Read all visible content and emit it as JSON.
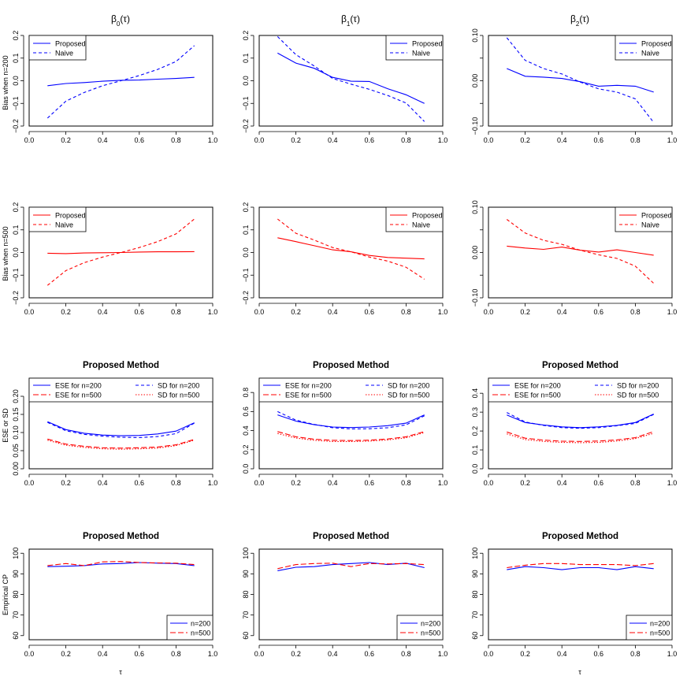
{
  "column_titles": [
    "β0(τ)",
    "β1(τ)",
    "β2(τ)"
  ],
  "row_ylabels": [
    "Bias when n=200",
    "Bias when n=500",
    "ESE or SD",
    "Empirical CP"
  ],
  "xlabel": "τ",
  "colors": {
    "blue": "#0000ff",
    "red": "#ff0000",
    "axis": "#000000"
  },
  "chart_data": [
    {
      "type": "line",
      "row": 0,
      "col": 0,
      "title": "",
      "xlabel": "",
      "ylabel": "Bias when n=200",
      "xlim": [
        0,
        1
      ],
      "ylim": [
        -0.2,
        0.2
      ],
      "xticks": [
        0,
        0.2,
        0.4,
        0.6,
        0.8,
        1
      ],
      "xtick_labels": [
        "0.0",
        "0.2",
        "0.4",
        "0.6",
        "0.8",
        "1.0"
      ],
      "yticks": [
        -0.2,
        -0.1,
        0,
        0.1,
        0.2
      ],
      "ytick_labels": [
        "−0.2",
        "−0.1",
        "0.0",
        "0.1",
        "0.2"
      ],
      "legend": "top-left",
      "x": [
        0.1,
        0.2,
        0.3,
        0.4,
        0.5,
        0.6,
        0.7,
        0.8,
        0.9
      ],
      "series": [
        {
          "name": "Proposed",
          "color": "#0000ff",
          "dash": false,
          "values": [
            -0.022,
            -0.012,
            -0.008,
            -0.002,
            0.002,
            0.003,
            0.007,
            0.01,
            0.015
          ]
        },
        {
          "name": "Naive",
          "color": "#0000ff",
          "dash": true,
          "values": [
            -0.165,
            -0.09,
            -0.052,
            -0.022,
            0.0,
            0.023,
            0.05,
            0.085,
            0.155
          ]
        }
      ]
    },
    {
      "type": "line",
      "row": 0,
      "col": 1,
      "title": "",
      "xlabel": "",
      "ylabel": "",
      "xlim": [
        0,
        1
      ],
      "ylim": [
        -0.2,
        0.2
      ],
      "xticks": [
        0,
        0.2,
        0.4,
        0.6,
        0.8,
        1
      ],
      "xtick_labels": [
        "0.0",
        "0.2",
        "0.4",
        "0.6",
        "0.8",
        "1.0"
      ],
      "yticks": [
        -0.2,
        -0.1,
        0,
        0.1,
        0.2
      ],
      "ytick_labels": [
        "−0.2",
        "−0.1",
        "0.0",
        "0.1",
        "0.2"
      ],
      "legend": "top-right",
      "x": [
        0.1,
        0.2,
        0.3,
        0.4,
        0.5,
        0.6,
        0.7,
        0.8,
        0.9
      ],
      "series": [
        {
          "name": "Proposed",
          "color": "#0000ff",
          "dash": false,
          "values": [
            0.122,
            0.078,
            0.055,
            0.015,
            -0.002,
            -0.003,
            -0.035,
            -0.062,
            -0.1
          ]
        },
        {
          "name": "Naive",
          "color": "#0000ff",
          "dash": true,
          "values": [
            0.195,
            0.115,
            0.065,
            0.01,
            -0.015,
            -0.038,
            -0.065,
            -0.098,
            -0.18
          ]
        }
      ]
    },
    {
      "type": "line",
      "row": 0,
      "col": 2,
      "title": "",
      "xlabel": "",
      "ylabel": "",
      "xlim": [
        0,
        1
      ],
      "ylim": [
        -0.1,
        0.1
      ],
      "xticks": [
        0,
        0.2,
        0.4,
        0.6,
        0.8,
        1
      ],
      "xtick_labels": [
        "0.0",
        "0.2",
        "0.4",
        "0.6",
        "0.8",
        "1.0"
      ],
      "yticks": [
        -0.1,
        -0.05,
        0,
        0.05,
        0.1
      ],
      "ytick_labels": [
        "−0.10",
        "",
        "0.00",
        "",
        "0.10"
      ],
      "legend": "top-right",
      "x": [
        0.1,
        0.2,
        0.3,
        0.4,
        0.5,
        0.6,
        0.7,
        0.8,
        0.9
      ],
      "series": [
        {
          "name": "Proposed",
          "color": "#0000ff",
          "dash": false,
          "values": [
            0.027,
            0.01,
            0.008,
            0.005,
            -0.002,
            -0.012,
            -0.01,
            -0.012,
            -0.025
          ]
        },
        {
          "name": "Naive",
          "color": "#0000ff",
          "dash": true,
          "values": [
            0.095,
            0.045,
            0.027,
            0.015,
            -0.003,
            -0.018,
            -0.025,
            -0.04,
            -0.092
          ]
        }
      ]
    },
    {
      "type": "line",
      "row": 1,
      "col": 0,
      "title": "",
      "xlabel": "",
      "ylabel": "Bias when n=500",
      "xlim": [
        0,
        1
      ],
      "ylim": [
        -0.2,
        0.2
      ],
      "xticks": [
        0,
        0.2,
        0.4,
        0.6,
        0.8,
        1
      ],
      "xtick_labels": [
        "0.0",
        "0.2",
        "0.4",
        "0.6",
        "0.8",
        "1.0"
      ],
      "yticks": [
        -0.2,
        -0.1,
        0,
        0.1,
        0.2
      ],
      "ytick_labels": [
        "−0.2",
        "−0.1",
        "0.0",
        "0.1",
        "0.2"
      ],
      "legend": "top-left",
      "x": [
        0.1,
        0.2,
        0.3,
        0.4,
        0.5,
        0.6,
        0.7,
        0.8,
        0.9
      ],
      "series": [
        {
          "name": "Proposed",
          "color": "#ff0000",
          "dash": false,
          "values": [
            -0.003,
            -0.005,
            -0.002,
            -0.001,
            0.0,
            0.002,
            0.003,
            0.003,
            0.004
          ]
        },
        {
          "name": "Naive",
          "color": "#ff0000",
          "dash": true,
          "values": [
            -0.145,
            -0.08,
            -0.045,
            -0.02,
            0.0,
            0.022,
            0.048,
            0.082,
            0.148
          ]
        }
      ]
    },
    {
      "type": "line",
      "row": 1,
      "col": 1,
      "title": "",
      "xlabel": "",
      "ylabel": "",
      "xlim": [
        0,
        1
      ],
      "ylim": [
        -0.2,
        0.2
      ],
      "xticks": [
        0,
        0.2,
        0.4,
        0.6,
        0.8,
        1
      ],
      "xtick_labels": [
        "0.0",
        "0.2",
        "0.4",
        "0.6",
        "0.8",
        "1.0"
      ],
      "yticks": [
        -0.2,
        -0.1,
        0,
        0.1,
        0.2
      ],
      "ytick_labels": [
        "−0.2",
        "−0.1",
        "0.0",
        "0.1",
        "0.2"
      ],
      "legend": "top-right",
      "x": [
        0.1,
        0.2,
        0.3,
        0.4,
        0.5,
        0.6,
        0.7,
        0.8,
        0.9
      ],
      "series": [
        {
          "name": "Proposed",
          "color": "#ff0000",
          "dash": false,
          "values": [
            0.065,
            0.048,
            0.03,
            0.012,
            0.003,
            -0.013,
            -0.022,
            -0.025,
            -0.028
          ]
        },
        {
          "name": "Naive",
          "color": "#ff0000",
          "dash": true,
          "values": [
            0.148,
            0.085,
            0.055,
            0.022,
            0.003,
            -0.02,
            -0.038,
            -0.065,
            -0.118
          ]
        }
      ]
    },
    {
      "type": "line",
      "row": 1,
      "col": 2,
      "title": "",
      "xlabel": "",
      "ylabel": "",
      "xlim": [
        0,
        1
      ],
      "ylim": [
        -0.1,
        0.1
      ],
      "xticks": [
        0,
        0.2,
        0.4,
        0.6,
        0.8,
        1
      ],
      "xtick_labels": [
        "0.0",
        "0.2",
        "0.4",
        "0.6",
        "0.8",
        "1.0"
      ],
      "yticks": [
        -0.1,
        -0.05,
        0,
        0.05,
        0.1
      ],
      "ytick_labels": [
        "−0.10",
        "",
        "0.00",
        "",
        "0.10"
      ],
      "legend": "top-right",
      "x": [
        0.1,
        0.2,
        0.3,
        0.4,
        0.5,
        0.6,
        0.7,
        0.8,
        0.9
      ],
      "series": [
        {
          "name": "Proposed",
          "color": "#ff0000",
          "dash": false,
          "values": [
            0.014,
            0.01,
            0.007,
            0.012,
            0.005,
            0.001,
            0.006,
            0.0,
            -0.006
          ]
        },
        {
          "name": "Naive",
          "color": "#ff0000",
          "dash": true,
          "values": [
            0.073,
            0.043,
            0.027,
            0.018,
            0.005,
            -0.005,
            -0.013,
            -0.03,
            -0.068
          ]
        }
      ]
    },
    {
      "type": "line",
      "row": 2,
      "col": 0,
      "title": "Proposed Method",
      "xlabel": "",
      "ylabel": "ESE or SD",
      "xlim": [
        0,
        1
      ],
      "ylim": [
        0,
        0.25
      ],
      "xticks": [
        0,
        0.2,
        0.4,
        0.6,
        0.8,
        1
      ],
      "xtick_labels": [
        "0.0",
        "0.2",
        "0.4",
        "0.6",
        "0.8",
        "1.0"
      ],
      "yticks": [
        0,
        0.05,
        0.1,
        0.15,
        0.2
      ],
      "ytick_labels": [
        "0.00",
        "0.05",
        "0.10",
        "0.15",
        "0.20"
      ],
      "legend": "top",
      "x": [
        0.1,
        0.2,
        0.3,
        0.4,
        0.5,
        0.6,
        0.7,
        0.8,
        0.9
      ],
      "series": [
        {
          "name": "ESE for n=200",
          "color": "#0000ff",
          "dash": "solid",
          "values": [
            0.13,
            0.108,
            0.098,
            0.093,
            0.091,
            0.092,
            0.096,
            0.104,
            0.127
          ]
        },
        {
          "name": "ESE for n=500",
          "color": "#ff0000",
          "dash": "long",
          "values": [
            0.082,
            0.068,
            0.062,
            0.058,
            0.057,
            0.058,
            0.06,
            0.066,
            0.081
          ]
        },
        {
          "name": "SD for n=200",
          "color": "#0000ff",
          "dash": "dash",
          "values": [
            0.128,
            0.105,
            0.095,
            0.09,
            0.087,
            0.086,
            0.089,
            0.097,
            0.126
          ]
        },
        {
          "name": "SD for n=500",
          "color": "#ff0000",
          "dash": "dot",
          "values": [
            0.079,
            0.065,
            0.059,
            0.055,
            0.054,
            0.055,
            0.057,
            0.064,
            0.079
          ]
        }
      ]
    },
    {
      "type": "line",
      "row": 2,
      "col": 1,
      "title": "Proposed Method",
      "xlabel": "",
      "ylabel": "",
      "xlim": [
        0,
        1
      ],
      "ylim": [
        0,
        0.95
      ],
      "xticks": [
        0,
        0.2,
        0.4,
        0.6,
        0.8,
        1
      ],
      "xtick_labels": [
        "0.0",
        "0.2",
        "0.4",
        "0.6",
        "0.8",
        "1.0"
      ],
      "yticks": [
        0,
        0.2,
        0.4,
        0.6,
        0.8
      ],
      "ytick_labels": [
        "0.0",
        "0.2",
        "0.4",
        "0.6",
        "0.8"
      ],
      "legend": "top",
      "x": [
        0.1,
        0.2,
        0.3,
        0.4,
        0.5,
        0.6,
        0.7,
        0.8,
        0.9
      ],
      "series": [
        {
          "name": "ESE for n=200",
          "color": "#0000ff",
          "dash": "solid",
          "values": [
            0.565,
            0.5,
            0.462,
            0.438,
            0.432,
            0.438,
            0.452,
            0.478,
            0.565
          ]
        },
        {
          "name": "ESE for n=500",
          "color": "#ff0000",
          "dash": "long",
          "values": [
            0.39,
            0.335,
            0.31,
            0.298,
            0.296,
            0.3,
            0.312,
            0.335,
            0.39
          ]
        },
        {
          "name": "SD for n=200",
          "color": "#0000ff",
          "dash": "dash",
          "values": [
            0.6,
            0.51,
            0.465,
            0.43,
            0.418,
            0.42,
            0.43,
            0.46,
            0.555
          ]
        },
        {
          "name": "SD for n=500",
          "color": "#ff0000",
          "dash": "dot",
          "values": [
            0.37,
            0.322,
            0.298,
            0.285,
            0.285,
            0.29,
            0.302,
            0.325,
            0.38
          ]
        }
      ]
    },
    {
      "type": "line",
      "row": 2,
      "col": 2,
      "title": "Proposed Method",
      "xlabel": "",
      "ylabel": "",
      "xlim": [
        0,
        1
      ],
      "ylim": [
        0,
        0.48
      ],
      "xticks": [
        0,
        0.2,
        0.4,
        0.6,
        0.8,
        1
      ],
      "xtick_labels": [
        "0.0",
        "0.2",
        "0.4",
        "0.6",
        "0.8",
        "1.0"
      ],
      "yticks": [
        0,
        0.1,
        0.2,
        0.3,
        0.4
      ],
      "ytick_labels": [
        "0.0",
        "0.1",
        "0.2",
        "0.3",
        "0.4"
      ],
      "legend": "top",
      "x": [
        0.1,
        0.2,
        0.3,
        0.4,
        0.5,
        0.6,
        0.7,
        0.8,
        0.9
      ],
      "series": [
        {
          "name": "ESE for n=200",
          "color": "#0000ff",
          "dash": "solid",
          "values": [
            0.285,
            0.245,
            0.232,
            0.222,
            0.218,
            0.222,
            0.23,
            0.245,
            0.29
          ]
        },
        {
          "name": "ESE for n=500",
          "color": "#ff0000",
          "dash": "long",
          "values": [
            0.195,
            0.162,
            0.152,
            0.146,
            0.145,
            0.147,
            0.153,
            0.165,
            0.197
          ]
        },
        {
          "name": "SD for n=200",
          "color": "#0000ff",
          "dash": "dash",
          "values": [
            0.298,
            0.248,
            0.23,
            0.218,
            0.214,
            0.218,
            0.228,
            0.24,
            0.288
          ]
        },
        {
          "name": "SD for n=500",
          "color": "#ff0000",
          "dash": "dot",
          "values": [
            0.185,
            0.155,
            0.145,
            0.14,
            0.138,
            0.14,
            0.147,
            0.16,
            0.188
          ]
        }
      ]
    },
    {
      "type": "line",
      "row": 3,
      "col": 0,
      "title": "Proposed Method",
      "xlabel": "τ",
      "ylabel": "Emprical CP",
      "xlim": [
        0,
        1
      ],
      "ylim": [
        58,
        102
      ],
      "xticks": [
        0,
        0.2,
        0.4,
        0.6,
        0.8,
        1
      ],
      "xtick_labels": [
        "0.0",
        "0.2",
        "0.4",
        "0.6",
        "0.8",
        "1.0"
      ],
      "yticks": [
        60,
        70,
        80,
        90,
        100
      ],
      "ytick_labels": [
        "60",
        "70",
        "80",
        "90",
        "100"
      ],
      "legend": "bottom-right",
      "x": [
        0.1,
        0.2,
        0.3,
        0.4,
        0.5,
        0.6,
        0.7,
        0.8,
        0.9
      ],
      "series": [
        {
          "name": "n=200",
          "color": "#0000ff",
          "dash": "solid",
          "values": [
            93.5,
            93.7,
            94.0,
            94.8,
            95.0,
            95.5,
            95.2,
            95.0,
            94.0
          ]
        },
        {
          "name": "n=500",
          "color": "#ff0000",
          "dash": "long",
          "values": [
            94.0,
            95.0,
            94.0,
            95.8,
            96.0,
            95.5,
            95.3,
            95.2,
            94.5
          ]
        }
      ]
    },
    {
      "type": "line",
      "row": 3,
      "col": 1,
      "title": "Proposed Method",
      "xlabel": "",
      "ylabel": "",
      "xlim": [
        0,
        1
      ],
      "ylim": [
        58,
        102
      ],
      "xticks": [
        0,
        0.2,
        0.4,
        0.6,
        0.8,
        1
      ],
      "xtick_labels": [
        "0.0",
        "0.2",
        "0.4",
        "0.6",
        "0.8",
        "1.0"
      ],
      "yticks": [
        60,
        70,
        80,
        90,
        100
      ],
      "ytick_labels": [
        "60",
        "70",
        "80",
        "90",
        "100"
      ],
      "legend": "bottom-right",
      "x": [
        0.1,
        0.2,
        0.3,
        0.4,
        0.5,
        0.6,
        0.7,
        0.8,
        0.9
      ],
      "series": [
        {
          "name": "n=200",
          "color": "#0000ff",
          "dash": "solid",
          "values": [
            91.5,
            93.2,
            93.5,
            94.5,
            95.0,
            95.5,
            94.5,
            95.2,
            93.0
          ]
        },
        {
          "name": "n=500",
          "color": "#ff0000",
          "dash": "long",
          "values": [
            92.5,
            94.5,
            95.0,
            95.2,
            93.5,
            95.0,
            94.8,
            95.0,
            94.5
          ]
        }
      ]
    },
    {
      "type": "line",
      "row": 3,
      "col": 2,
      "title": "Proposed Method",
      "xlabel": "τ",
      "ylabel": "",
      "xlim": [
        0,
        1
      ],
      "ylim": [
        58,
        102
      ],
      "xticks": [
        0,
        0.2,
        0.4,
        0.6,
        0.8,
        1
      ],
      "xtick_labels": [
        "0.0",
        "0.2",
        "0.4",
        "0.6",
        "0.8",
        "1.0"
      ],
      "yticks": [
        60,
        70,
        80,
        90,
        100
      ],
      "ytick_labels": [
        "60",
        "70",
        "80",
        "90",
        "100"
      ],
      "legend": "bottom-right",
      "x": [
        0.1,
        0.2,
        0.3,
        0.4,
        0.5,
        0.6,
        0.7,
        0.8,
        0.9
      ],
      "series": [
        {
          "name": "n=200",
          "color": "#0000ff",
          "dash": "solid",
          "values": [
            92.0,
            93.5,
            93.0,
            92.0,
            93.0,
            93.0,
            92.0,
            93.5,
            92.5
          ]
        },
        {
          "name": "n=500",
          "color": "#ff0000",
          "dash": "long",
          "values": [
            93.0,
            94.2,
            95.0,
            95.0,
            94.5,
            94.5,
            94.5,
            94.0,
            95.0
          ]
        }
      ]
    }
  ]
}
